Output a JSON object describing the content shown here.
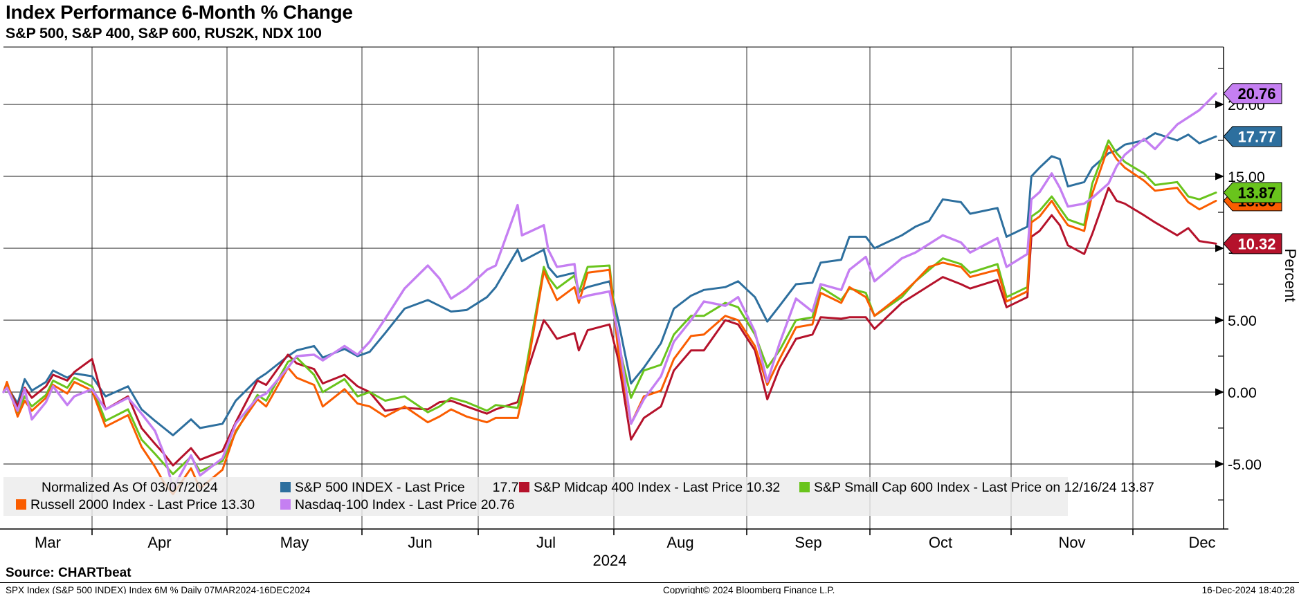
{
  "header": {
    "title": "Index Performance 6-Month % Change",
    "subtitle": "S&P 500, S&P 400, S&P 600, RUS2K, NDX 100"
  },
  "chart_data": {
    "type": "line",
    "title": "Index Performance 6-Month % Change",
    "normalized_note": "Normalized As Of 03/07/2024",
    "x_axis": {
      "months": [
        "Mar",
        "Apr",
        "May",
        "Jun",
        "Jul",
        "Aug",
        "Sep",
        "Oct",
        "Nov",
        "Dec"
      ],
      "year": "2024"
    },
    "y_axis": {
      "title": "Percent",
      "tick_labels": [
        "20.00",
        "15.00",
        "10.00",
        "5.00",
        "0.00",
        "-5.00"
      ],
      "tick_values": [
        20,
        15,
        10,
        5,
        0,
        -5
      ],
      "minor_tick_values": [
        22.5,
        17.5,
        12.5,
        7.5,
        2.5,
        -2.5,
        -7.5
      ],
      "ylim": [
        -9.5,
        24
      ]
    },
    "x": [
      "3-7",
      "3-8",
      "3-11",
      "3-13",
      "3-15",
      "3-19",
      "3-21",
      "3-25",
      "3-27",
      "4-1",
      "4-4",
      "4-9",
      "4-12",
      "4-15",
      "4-17",
      "4-19",
      "4-23",
      "4-25",
      "4-30",
      "5-3",
      "5-8",
      "5-10",
      "5-15",
      "5-17",
      "5-21",
      "5-23",
      "5-28",
      "5-31",
      "6-3",
      "6-7",
      "6-12",
      "6-18",
      "6-21",
      "6-24",
      "6-28",
      "7-3",
      "7-5",
      "7-10",
      "7-11",
      "7-16",
      "7-17",
      "7-19",
      "7-23",
      "7-24",
      "7-26",
      "7-31",
      "8-2",
      "8-5",
      "8-8",
      "8-12",
      "8-15",
      "8-19",
      "8-22",
      "8-27",
      "8-30",
      "9-3",
      "9-6",
      "9-9",
      "9-13",
      "9-17",
      "9-19",
      "9-24",
      "9-26",
      "9-30",
      "10-2",
      "10-8",
      "10-11",
      "10-14",
      "10-17",
      "10-21",
      "10-23",
      "10-29",
      "10-31",
      "11-5",
      "11-6",
      "11-8",
      "11-11",
      "11-13",
      "11-15",
      "11-19",
      "11-21",
      "11-25",
      "11-27",
      "11-29",
      "12-3",
      "12-5",
      "12-9",
      "12-11",
      "12-13",
      "12-16"
    ],
    "series": [
      {
        "name": "S&P 500 INDEX",
        "legend_label": "S&P 500 INDEX - Last Price",
        "legend_value": "17.77",
        "last_price": "17.77",
        "color": "#2d6f9e",
        "badge_text_color": "#ffffff",
        "values": [
          0,
          0.4,
          -0.8,
          0.9,
          0.1,
          0.7,
          1.5,
          1.0,
          1.3,
          1.1,
          -0.3,
          0.4,
          -1.2,
          -2.0,
          -2.5,
          -3.0,
          -1.9,
          -2.5,
          -2.2,
          -0.6,
          0.9,
          1.3,
          2.5,
          2.9,
          3.2,
          2.4,
          3.0,
          2.5,
          2.8,
          4.1,
          5.8,
          6.4,
          6.0,
          5.6,
          5.7,
          6.6,
          7.3,
          9.9,
          9.1,
          9.9,
          8.7,
          8.0,
          8.3,
          7.0,
          7.3,
          7.7,
          5.0,
          0.6,
          1.7,
          3.4,
          5.8,
          6.7,
          7.1,
          7.3,
          7.7,
          6.6,
          4.9,
          6.0,
          7.5,
          7.6,
          9.0,
          9.2,
          10.8,
          10.8,
          10.0,
          10.9,
          11.5,
          11.9,
          13.4,
          13.2,
          12.4,
          12.8,
          10.8,
          11.5,
          15.0,
          15.6,
          16.4,
          16.2,
          14.3,
          14.6,
          15.6,
          16.6,
          16.8,
          17.2,
          17.5,
          18.0,
          17.5,
          17.9,
          17.3,
          17.77
        ]
      },
      {
        "name": "S&P Midcap 400 Index",
        "legend_label": "S&P Midcap 400 Index - Last Price 10.32",
        "last_price": "10.32",
        "color": "#b5122b",
        "badge_text_color": "#ffffff",
        "values": [
          0,
          0.5,
          -1.0,
          0.3,
          -0.4,
          0.4,
          1.2,
          0.8,
          1.4,
          2.3,
          -1.2,
          -0.3,
          -2.5,
          -3.6,
          -4.3,
          -5.1,
          -3.9,
          -4.7,
          -4.1,
          -2.1,
          0.8,
          0.5,
          2.6,
          2.0,
          1.6,
          0.6,
          1.2,
          0.4,
          0.0,
          -1.3,
          -1.1,
          -1.2,
          -0.7,
          -0.6,
          -1.0,
          -1.5,
          -1.2,
          -0.7,
          0.3,
          5.0,
          4.6,
          3.7,
          4.1,
          2.9,
          4.3,
          4.7,
          2.3,
          -3.3,
          -1.8,
          -1.0,
          1.5,
          2.9,
          2.9,
          5.0,
          4.7,
          2.9,
          -0.5,
          1.7,
          3.7,
          4.0,
          5.2,
          5.1,
          5.2,
          5.2,
          4.4,
          6.2,
          6.8,
          7.4,
          8.0,
          7.5,
          7.2,
          7.8,
          5.9,
          6.6,
          10.8,
          11.2,
          12.3,
          11.6,
          10.2,
          9.6,
          11.0,
          14.2,
          13.3,
          13.1,
          12.3,
          11.8,
          10.9,
          11.4,
          10.5,
          10.32
        ]
      },
      {
        "name": "S&P Small Cap 600 Index",
        "legend_label": "S&P Small Cap 600 Index - Last Price on 12/16/24 13.87",
        "last_price": "13.87",
        "color": "#69c41c",
        "badge_text_color": "#000000",
        "values": [
          0,
          0.6,
          -1.4,
          -0.3,
          -1.0,
          -0.2,
          0.8,
          0.3,
          1.0,
          0.4,
          -2.0,
          -1.2,
          -3.3,
          -4.3,
          -5.0,
          -5.7,
          -4.5,
          -5.5,
          -4.8,
          -2.8,
          -0.2,
          -0.6,
          2.1,
          2.4,
          1.2,
          0.0,
          0.9,
          -0.3,
          0.0,
          -0.6,
          -0.3,
          -1.4,
          -1.0,
          -0.4,
          -0.7,
          -1.3,
          -0.9,
          -1.1,
          0.0,
          8.7,
          8.0,
          7.2,
          8.1,
          6.9,
          8.7,
          8.8,
          3.5,
          -0.4,
          1.5,
          1.9,
          4.0,
          5.3,
          5.3,
          6.2,
          5.9,
          4.0,
          1.7,
          2.9,
          5.0,
          5.2,
          7.3,
          6.4,
          7.2,
          6.9,
          5.3,
          6.6,
          7.7,
          8.5,
          9.3,
          8.9,
          8.3,
          8.9,
          6.6,
          7.3,
          12.2,
          12.6,
          13.6,
          12.8,
          12.0,
          11.6,
          14.5,
          17.5,
          16.6,
          16.0,
          15.2,
          14.4,
          14.6,
          13.6,
          13.4,
          13.87
        ]
      },
      {
        "name": "Russell 2000 Index",
        "legend_label": "Russell 2000 Index - Last Price 13.30",
        "last_price": "13.30",
        "color": "#fa5d00",
        "badge_text_color": "#000000",
        "values": [
          0,
          0.7,
          -1.7,
          -0.6,
          -1.3,
          -0.4,
          0.5,
          -0.1,
          0.7,
          0.1,
          -2.4,
          -1.6,
          -3.8,
          -5.2,
          -6.3,
          -7.1,
          -5.3,
          -6.7,
          -5.4,
          -2.7,
          -0.5,
          -1.0,
          1.7,
          1.0,
          0.5,
          -1.0,
          0.2,
          -0.8,
          -1.0,
          -1.7,
          -1.0,
          -2.1,
          -1.7,
          -1.2,
          -1.7,
          -2.1,
          -1.8,
          -1.8,
          -0.5,
          8.4,
          7.7,
          6.4,
          7.3,
          6.2,
          8.3,
          8.5,
          2.9,
          -2.2,
          -0.3,
          0.1,
          2.3,
          3.9,
          4.0,
          5.3,
          5.0,
          3.2,
          0.5,
          2.3,
          4.5,
          4.7,
          6.9,
          6.2,
          7.3,
          6.6,
          5.3,
          6.8,
          7.7,
          8.7,
          9.0,
          8.7,
          8.0,
          8.5,
          6.3,
          7.0,
          11.8,
          12.2,
          13.3,
          12.4,
          11.6,
          11.2,
          13.8,
          17.1,
          16.2,
          15.6,
          14.7,
          14.0,
          14.2,
          13.2,
          12.7,
          13.3
        ]
      },
      {
        "name": "Nasdaq-100 Index",
        "legend_label": "Nasdaq-100 Index - Last Price 20.76",
        "last_price": "20.76",
        "color": "#c57ff2",
        "badge_text_color": "#000000",
        "values": [
          0,
          0.3,
          -1.3,
          0.2,
          -1.9,
          -0.7,
          0.4,
          -0.9,
          -0.3,
          0.2,
          -1.2,
          -0.4,
          -1.5,
          -2.7,
          -4.3,
          -6.7,
          -4.4,
          -5.8,
          -4.6,
          -2.2,
          -0.4,
          -0.1,
          1.7,
          2.5,
          2.6,
          2.2,
          3.2,
          2.6,
          3.5,
          5.1,
          7.2,
          8.8,
          7.9,
          6.5,
          7.2,
          8.5,
          8.8,
          13.0,
          10.9,
          11.6,
          9.9,
          8.7,
          8.9,
          6.5,
          6.7,
          7.0,
          4.0,
          -2.2,
          -0.5,
          1.1,
          3.5,
          5.0,
          6.3,
          6.0,
          6.6,
          4.2,
          0.7,
          3.4,
          6.5,
          5.6,
          7.5,
          7.1,
          8.5,
          9.4,
          7.7,
          9.3,
          9.7,
          10.3,
          10.9,
          10.4,
          9.7,
          10.7,
          8.7,
          9.6,
          13.4,
          13.9,
          15.2,
          14.2,
          12.9,
          13.1,
          13.5,
          14.5,
          15.7,
          16.5,
          17.6,
          16.9,
          18.6,
          19.1,
          19.6,
          20.76
        ]
      }
    ],
    "legend_rows": [
      [
        {
          "text": "Normalized As Of 03/07/2024"
        },
        {
          "series": 0
        },
        {
          "series": 1
        },
        {
          "series": 2
        }
      ],
      [
        {
          "series": 3
        },
        {
          "series": 4
        }
      ]
    ]
  },
  "footer": {
    "source": "Source: CHARTbeat",
    "meta_left": "SPX Index (S&P 500 INDEX) Index 6M %  Daily 07MAR2024-16DEC2024",
    "copyright": "Copyright© 2024 Bloomberg Finance L.P.",
    "datetime": "16-Dec-2024 18:40:28"
  }
}
